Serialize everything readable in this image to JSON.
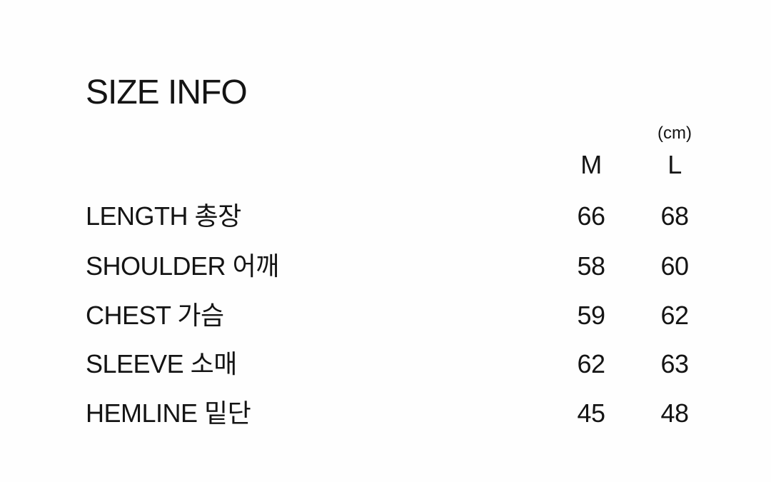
{
  "page": {
    "title": "SIZE INFO",
    "unit_label": "(cm)"
  },
  "size_table": {
    "column_headers": [
      "M",
      "L"
    ],
    "rows": [
      {
        "label_en": "LENGTH",
        "label_ko": "총장",
        "values": {
          "M": "66",
          "L": "68"
        }
      },
      {
        "label_en": "SHOULDER",
        "label_ko": "어깨",
        "values": {
          "M": "58",
          "L": "60"
        }
      },
      {
        "label_en": "CHEST",
        "label_ko": "가슴",
        "values": {
          "M": "59",
          "L": "62"
        }
      },
      {
        "label_en": "SLEEVE",
        "label_ko": "소매",
        "values": {
          "M": "62",
          "L": "63"
        }
      },
      {
        "label_en": "HEMLINE",
        "label_ko": "밑단",
        "values": {
          "M": "45",
          "L": "48"
        }
      }
    ]
  },
  "colors": {
    "background": "#fefefe",
    "text": "#141414"
  }
}
